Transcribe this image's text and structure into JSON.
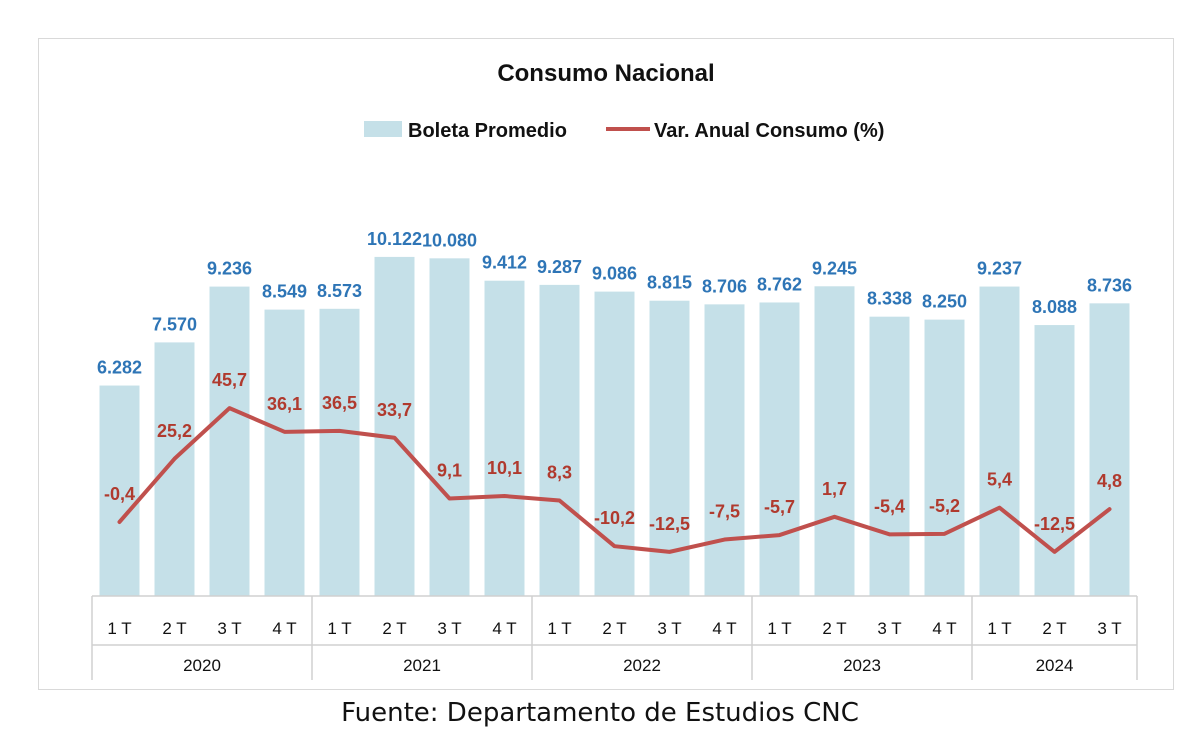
{
  "chart_data": {
    "type": "bar",
    "title": "Consumo Nacional",
    "quarters": [
      "1 T",
      "2 T",
      "3 T",
      "4 T",
      "1 T",
      "2 T",
      "3 T",
      "4 T",
      "1 T",
      "2 T",
      "3 T",
      "4 T",
      "1 T",
      "2 T",
      "3 T",
      "4 T",
      "1 T",
      "2 T",
      "3 T"
    ],
    "years": [
      {
        "label": "2020",
        "count": 4
      },
      {
        "label": "2021",
        "count": 4
      },
      {
        "label": "2022",
        "count": 4
      },
      {
        "label": "2023",
        "count": 4
      },
      {
        "label": "2024",
        "count": 3
      }
    ],
    "series": [
      {
        "name": "Boleta Promedio",
        "type": "bar",
        "color": "#c5e0e8",
        "label_color": "#2e75b6",
        "values": [
          6282,
          7570,
          9236,
          8549,
          8573,
          10122,
          10080,
          9412,
          9287,
          9086,
          8815,
          8706,
          8762,
          9245,
          8338,
          8250,
          9237,
          8088,
          8736
        ],
        "labels": [
          "6.282",
          "7.570",
          "9.236",
          "8.549",
          "8.573",
          "10.122",
          "10.080",
          "9.412",
          "9.287",
          "9.086",
          "8.815",
          "8.706",
          "8.762",
          "9.245",
          "8.338",
          "8.250",
          "9.237",
          "8.088",
          "8.736"
        ]
      },
      {
        "name": "Var. Anual Consumo (%)",
        "type": "line",
        "color": "#c0504d",
        "label_color": "#b03a2e",
        "values": [
          -0.4,
          25.2,
          45.7,
          36.1,
          36.5,
          33.7,
          9.1,
          10.1,
          8.3,
          -10.2,
          -12.5,
          -7.5,
          -5.7,
          1.7,
          -5.4,
          -5.2,
          5.4,
          -12.5,
          4.8
        ],
        "labels": [
          "-0,4",
          "25,2",
          "45,7",
          "36,1",
          "36,5",
          "33,7",
          "9,1",
          "10,1",
          "8,3",
          "-10,2",
          "-12,5",
          "-7,5",
          "-5,7",
          "1,7",
          "-5,4",
          "-5,2",
          "5,4",
          "-12,5",
          "4,8"
        ]
      }
    ],
    "legend_position": "top-center",
    "grid": false
  },
  "source_note": "Fuente: Departamento de Estudios CNC"
}
